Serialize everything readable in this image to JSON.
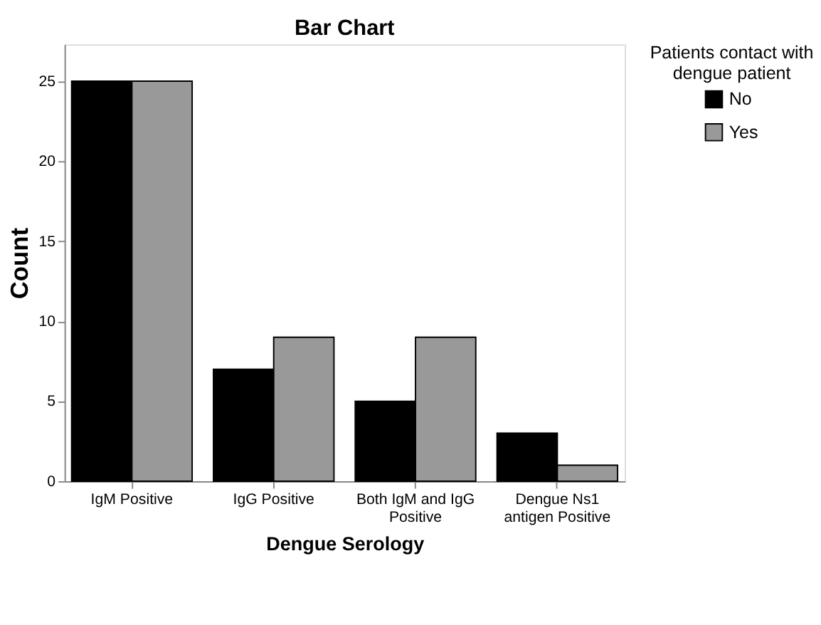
{
  "chart_data": {
    "type": "bar",
    "title": "Bar Chart",
    "xlabel": "Dengue Serology",
    "ylabel": "Count",
    "legend_title": "Patients contact with dengue patient",
    "categories": [
      "IgM Positive",
      "IgG Positive",
      "Both IgM and IgG Positive",
      "Dengue Ns1 antigen Positive"
    ],
    "series": [
      {
        "name": "No",
        "color": "#000000",
        "values": [
          25,
          7,
          5,
          3
        ]
      },
      {
        "name": "Yes",
        "color": "#999999",
        "values": [
          25,
          9,
          9,
          1
        ]
      }
    ],
    "ylim": [
      0,
      27.3
    ],
    "yticks": [
      0,
      5,
      10,
      15,
      20,
      25
    ],
    "grid": false,
    "legend": "top right"
  }
}
